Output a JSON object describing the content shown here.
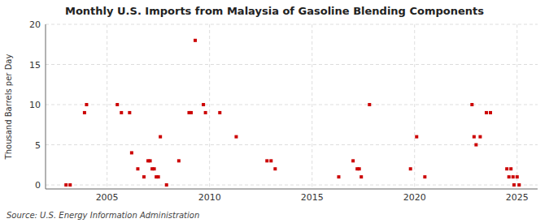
{
  "chart_data": {
    "type": "scatter",
    "title": "Monthly U.S. Imports from Malaysia of Gasoline Blending Components",
    "ylabel": "Thousand Barrels per Day",
    "annotations": [
      "Source: U.S. Energy Information Administration"
    ],
    "color": "#cc0000",
    "marker": "square",
    "grid": true,
    "xlim": [
      2002.0,
      2026.0
    ],
    "xticks": [
      2005,
      2010,
      2015,
      2020,
      2025
    ],
    "ylim": [
      -0.5,
      20
    ],
    "yticks": [
      0,
      5,
      10,
      15,
      20
    ],
    "x": [
      2003.0,
      2003.2,
      2003.9,
      2004.0,
      2005.5,
      2005.7,
      2006.1,
      2006.2,
      2006.5,
      2006.8,
      2007.0,
      2007.1,
      2007.2,
      2007.3,
      2007.4,
      2007.5,
      2007.6,
      2007.9,
      2008.5,
      2009.0,
      2009.1,
      2009.3,
      2009.7,
      2009.8,
      2010.5,
      2011.3,
      2012.8,
      2013.0,
      2013.2,
      2016.3,
      2017.0,
      2017.2,
      2017.3,
      2017.4,
      2017.8,
      2019.8,
      2020.1,
      2020.5,
      2022.8,
      2022.9,
      2023.0,
      2023.2,
      2023.5,
      2023.7,
      2024.5,
      2024.6,
      2024.7,
      2024.8,
      2024.85,
      2025.0,
      2025.1
    ],
    "values": [
      0.0,
      0.0,
      9.0,
      10.0,
      10.0,
      9.0,
      9.0,
      4.0,
      2.0,
      1.0,
      3.0,
      3.0,
      2.0,
      2.0,
      1.0,
      1.0,
      6.0,
      0.0,
      3.0,
      9.0,
      9.0,
      18.0,
      10.0,
      9.0,
      9.0,
      6.0,
      3.0,
      3.0,
      2.0,
      1.0,
      3.0,
      2.0,
      2.0,
      1.0,
      10.0,
      2.0,
      6.0,
      1.0,
      10.0,
      6.0,
      5.0,
      6.0,
      9.0,
      9.0,
      2.0,
      1.0,
      2.0,
      1.0,
      0.0,
      1.0,
      0.0
    ]
  }
}
